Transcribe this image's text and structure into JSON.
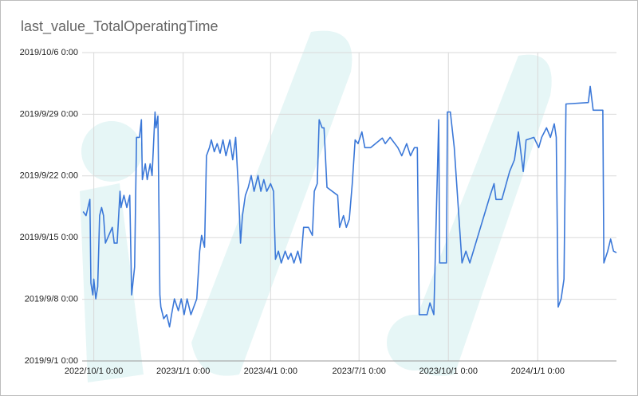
{
  "chart_data": {
    "type": "line",
    "title": "last_value_TotalOperatingTime",
    "color": "#3b78d8",
    "grid": true,
    "xlim": [
      "2022-09-19",
      "2024-03-22"
    ],
    "xticks": [
      {
        "value": "2022-10-01",
        "label": "2022/10/1 0:00"
      },
      {
        "value": "2023-01-01",
        "label": "2023/1/1 0:00"
      },
      {
        "value": "2023-04-01",
        "label": "2023/4/1 0:00"
      },
      {
        "value": "2023-07-01",
        "label": "2023/7/1 0:00"
      },
      {
        "value": "2023-10-01",
        "label": "2023/10/1 0:00"
      },
      {
        "value": "2024-01-01",
        "label": "2024/1/1 0:00"
      }
    ],
    "ylim": [
      "2019-09-01T00:00",
      "2019-10-06T00:00"
    ],
    "yticks": [
      {
        "value": "2019-09-01T00:00",
        "label": "2019/9/1 0:00"
      },
      {
        "value": "2019-09-08T00:00",
        "label": "2019/9/8 0:00"
      },
      {
        "value": "2019-09-15T00:00",
        "label": "2019/9/15 0:00"
      },
      {
        "value": "2019-09-22T00:00",
        "label": "2019/9/22 0:00"
      },
      {
        "value": "2019-09-29T00:00",
        "label": "2019/9/29 0:00"
      },
      {
        "value": "2019-10-06T00:00",
        "label": "2019/10/6 0:00"
      }
    ],
    "x": [
      "2022-09-20",
      "2022-09-23",
      "2022-09-27",
      "2022-09-28",
      "2022-09-30",
      "2022-10-01",
      "2022-10-03",
      "2022-10-05",
      "2022-10-07",
      "2022-10-09",
      "2022-10-11",
      "2022-10-13",
      "2022-10-20",
      "2022-10-22",
      "2022-10-25",
      "2022-10-28",
      "2022-10-29",
      "2022-11-01",
      "2022-11-04",
      "2022-11-07",
      "2022-11-09",
      "2022-11-12",
      "2022-11-14",
      "2022-11-17",
      "2022-11-19",
      "2022-11-20",
      "2022-11-23",
      "2022-11-25",
      "2022-11-28",
      "2022-11-30",
      "2022-12-03",
      "2022-12-04",
      "2022-12-06",
      "2022-12-08",
      "2022-12-09",
      "2022-12-12",
      "2022-12-15",
      "2022-12-18",
      "2022-12-20",
      "2022-12-23",
      "2022-12-27",
      "2022-12-30",
      "2023-01-02",
      "2023-01-05",
      "2023-01-09",
      "2023-01-15",
      "2023-01-18",
      "2023-01-20",
      "2023-01-23",
      "2023-01-25",
      "2023-01-28",
      "2023-01-30",
      "2023-02-02",
      "2023-02-05",
      "2023-02-08",
      "2023-02-11",
      "2023-02-14",
      "2023-02-18",
      "2023-02-21",
      "2023-02-24",
      "2023-02-27",
      "2023-03-01",
      "2023-03-03",
      "2023-03-06",
      "2023-03-09",
      "2023-03-12",
      "2023-03-15",
      "2023-03-19",
      "2023-03-22",
      "2023-03-25",
      "2023-03-28",
      "2023-04-01",
      "2023-04-04",
      "2023-04-06",
      "2023-04-09",
      "2023-04-12",
      "2023-04-16",
      "2023-04-19",
      "2023-04-22",
      "2023-04-25",
      "2023-04-29",
      "2023-05-02",
      "2023-05-05",
      "2023-05-10",
      "2023-05-14",
      "2023-05-16",
      "2023-05-19",
      "2023-05-21",
      "2023-05-24",
      "2023-05-26",
      "2023-05-29",
      "2023-06-09",
      "2023-06-11",
      "2023-06-15",
      "2023-06-18",
      "2023-06-21",
      "2023-06-24",
      "2023-06-27",
      "2023-06-30",
      "2023-07-04",
      "2023-07-07",
      "2023-07-13",
      "2023-07-25",
      "2023-07-28",
      "2023-08-02",
      "2023-08-10",
      "2023-08-14",
      "2023-08-19",
      "2023-08-23",
      "2023-08-27",
      "2023-08-30",
      "2023-09-01",
      "2023-09-09",
      "2023-09-12",
      "2023-09-16",
      "2023-09-21",
      "2023-09-22",
      "2023-09-29",
      "2023-09-30",
      "2023-10-03",
      "2023-10-07",
      "2023-10-15",
      "2023-10-19",
      "2023-10-23",
      "2023-11-13",
      "2023-11-17",
      "2023-11-19",
      "2023-11-25",
      "2023-12-03",
      "2023-12-08",
      "2023-12-12",
      "2023-12-17",
      "2023-12-20",
      "2023-12-28",
      "2024-01-02",
      "2024-01-05",
      "2024-01-10",
      "2024-01-14",
      "2024-01-18",
      "2024-01-20",
      "2024-01-22",
      "2024-01-25",
      "2024-01-28",
      "2024-01-30",
      "2024-02-22",
      "2024-02-24",
      "2024-02-27",
      "2024-03-08",
      "2024-03-09",
      "2024-03-13",
      "2024-03-16",
      "2024-03-19",
      "2024-03-22"
    ],
    "values": [
      "2019-09-17T23:00",
      "2019-09-17T12:00",
      "2019-09-19T08:00",
      "2019-09-09T20:00",
      "2019-09-08T12:00",
      "2019-09-10T07:00",
      "2019-09-08T01:00",
      "2019-09-09T10:00",
      "2019-09-17T12:00",
      "2019-09-18T10:00",
      "2019-09-17T12:00",
      "2019-09-14T09:00",
      "2019-09-16T04:00",
      "2019-09-14T09:00",
      "2019-09-14T09:00",
      "2019-09-20T06:00",
      "2019-09-18T10:00",
      "2019-09-19T19:00",
      "2019-09-18T10:00",
      "2019-09-19T19:00",
      "2019-09-08T12:00",
      "2019-09-11T16:00",
      "2019-09-26T09:00",
      "2019-09-26T09:00",
      "2019-09-28T09:00",
      "2019-09-21T14:00",
      "2019-09-23T09:00",
      "2019-09-21T14:00",
      "2019-09-23T09:00",
      "2019-09-22T01:00",
      "2019-09-29T06:00",
      "2019-09-27T11:00",
      "2019-09-28T19:00",
      "2019-09-08T12:00",
      "2019-09-07T03:00",
      "2019-09-05T19:00",
      "2019-09-06T06:00",
      "2019-09-04T21:00",
      "2019-09-06T06:00",
      "2019-09-08T01:00",
      "2019-09-06T17:00",
      "2019-09-08T01:00",
      "2019-09-06T06:00",
      "2019-09-08T01:00",
      "2019-09-06T06:00",
      "2019-09-08T01:00",
      "2019-09-13T11:00",
      "2019-09-15T06:00",
      "2019-09-13T22:00",
      "2019-09-24T07:00",
      "2019-09-25T05:00",
      "2019-09-26T02:00",
      "2019-09-24T18:00",
      "2019-09-25T16:00",
      "2019-09-24T14:00",
      "2019-09-26T02:00",
      "2019-09-24T07:00",
      "2019-09-26T02:00",
      "2019-09-23T20:00",
      "2019-09-26T09:00",
      "2019-09-20T06:00",
      "2019-09-14T09:00",
      "2019-09-17T12:00",
      "2019-09-19T19:00",
      "2019-09-20T17:00",
      "2019-09-22T01:00",
      "2019-09-20T06:00",
      "2019-09-22T01:00",
      "2019-09-20T06:00",
      "2019-09-21T14:00",
      "2019-09-20T06:00",
      "2019-09-21T03:00",
      "2019-09-20T06:00",
      "2019-09-12T13:00",
      "2019-09-13T11:00",
      "2019-09-12T03:00",
      "2019-09-13T11:00",
      "2019-09-12T13:00",
      "2019-09-13T05:00",
      "2019-09-12T03:00",
      "2019-09-13T11:00",
      "2019-09-12T03:00",
      "2019-09-16T04:00",
      "2019-09-16T04:00",
      "2019-09-15T06:00",
      "2019-09-20T06:00",
      "2019-09-21T03:00",
      "2019-09-28T09:00",
      "2019-09-27T11:00",
      "2019-09-27T11:00",
      "2019-09-20T17:00",
      "2019-09-19T19:00",
      "2019-09-16T04:00",
      "2019-09-17T12:00",
      "2019-09-16T04:00",
      "2019-09-17T02:00",
      "2019-09-21T03:00",
      "2019-09-26T02:00",
      "2019-09-25T16:00",
      "2019-09-27T00:00",
      "2019-09-25T05:00",
      "2019-09-25T05:00",
      "2019-09-26T07:00",
      "2019-09-25T16:00",
      "2019-09-26T09:00",
      "2019-09-25T05:00",
      "2019-09-24T07:00",
      "2019-09-25T16:00",
      "2019-09-24T07:00",
      "2019-09-25T05:00",
      "2019-09-25T05:00",
      "2019-09-06T06:00",
      "2019-09-06T06:00",
      "2019-09-07T14:00",
      "2019-09-06T06:00",
      "2019-09-28T09:00",
      "2019-09-12T03:00",
      "2019-09-12T03:00",
      "2019-09-29T06:00",
      "2019-09-29T06:00",
      "2019-09-25T05:00",
      "2019-09-12T03:00",
      "2019-09-13T11:00",
      "2019-09-12T03:00",
      "2019-09-19T19:00",
      "2019-09-21T03:00",
      "2019-09-19T08:00",
      "2019-09-19T08:00",
      "2019-09-22T12:00",
      "2019-09-23T20:00",
      "2019-09-27T00:00",
      "2019-09-22T12:00",
      "2019-09-26T02:00",
      "2019-09-26T09:00",
      "2019-09-25T05:00",
      "2019-09-26T09:00",
      "2019-09-27T11:00",
      "2019-09-26T09:00",
      "2019-09-27T22:00",
      "2019-09-26T09:00",
      "2019-09-07T03:00",
      "2019-09-08T01:00",
      "2019-09-10T07:00",
      "2019-09-30T04:00",
      "2019-09-30T08:00",
      "2019-10-02T04:00",
      "2019-09-29T11:00",
      "2019-09-29T11:00",
      "2019-09-12T03:00",
      "2019-09-13T11:00",
      "2019-09-14T20:00",
      "2019-09-13T11:00",
      "2019-09-13T07:00"
    ]
  }
}
